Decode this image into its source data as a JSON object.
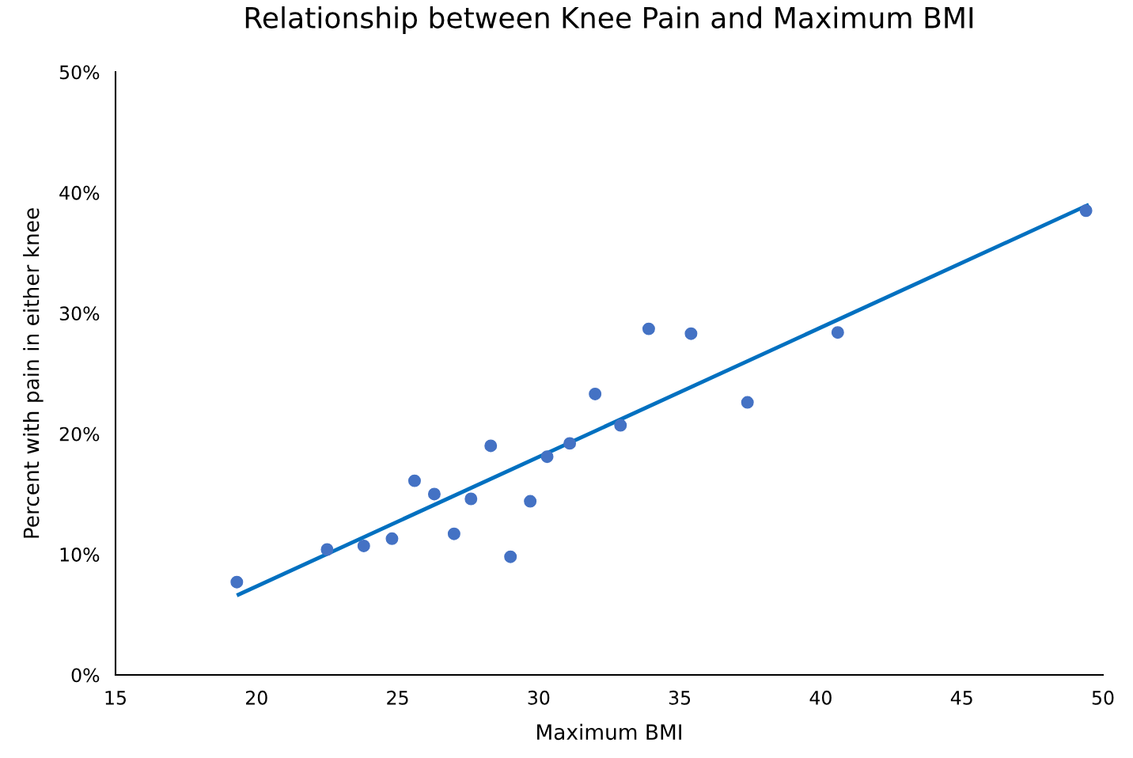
{
  "chart_data": {
    "type": "scatter",
    "title": "Relationship between Knee Pain and Maximum BMI",
    "xlabel": "Maximum BMI",
    "ylabel": "Percent with pain in either knee",
    "series": [
      {
        "color": "#4472c4",
        "marker": "circle",
        "x": [
          19.3,
          22.5,
          23.8,
          24.8,
          25.6,
          26.3,
          27.0,
          27.6,
          28.3,
          29.0,
          29.7,
          30.3,
          31.1,
          32.0,
          32.9,
          33.9,
          35.4,
          37.4,
          40.6,
          49.4
        ],
        "values": [
          7.7,
          10.4,
          10.7,
          11.3,
          16.1,
          15.0,
          11.7,
          14.6,
          19.0,
          9.8,
          14.4,
          18.1,
          19.2,
          23.3,
          20.7,
          28.7,
          28.3,
          22.6,
          28.4,
          38.5
        ]
      },
      {
        "type": "line",
        "color": "#0070c0",
        "marker": "none",
        "x": [
          19.3,
          49.5
        ],
        "values": [
          6.6,
          39.0
        ]
      }
    ],
    "xlim": [
      15,
      50
    ],
    "xticks": [
      15,
      20,
      25,
      30,
      35,
      40,
      45,
      50
    ],
    "ylim": [
      0,
      50
    ],
    "yticks": [
      {
        "value": 0,
        "label": "0%"
      },
      {
        "value": 10,
        "label": "10%"
      },
      {
        "value": 20,
        "label": "20%"
      },
      {
        "value": 30,
        "label": "30%"
      },
      {
        "value": 40,
        "label": "40%"
      },
      {
        "value": 50,
        "label": "50%"
      }
    ],
    "grid": false,
    "legend": false
  }
}
